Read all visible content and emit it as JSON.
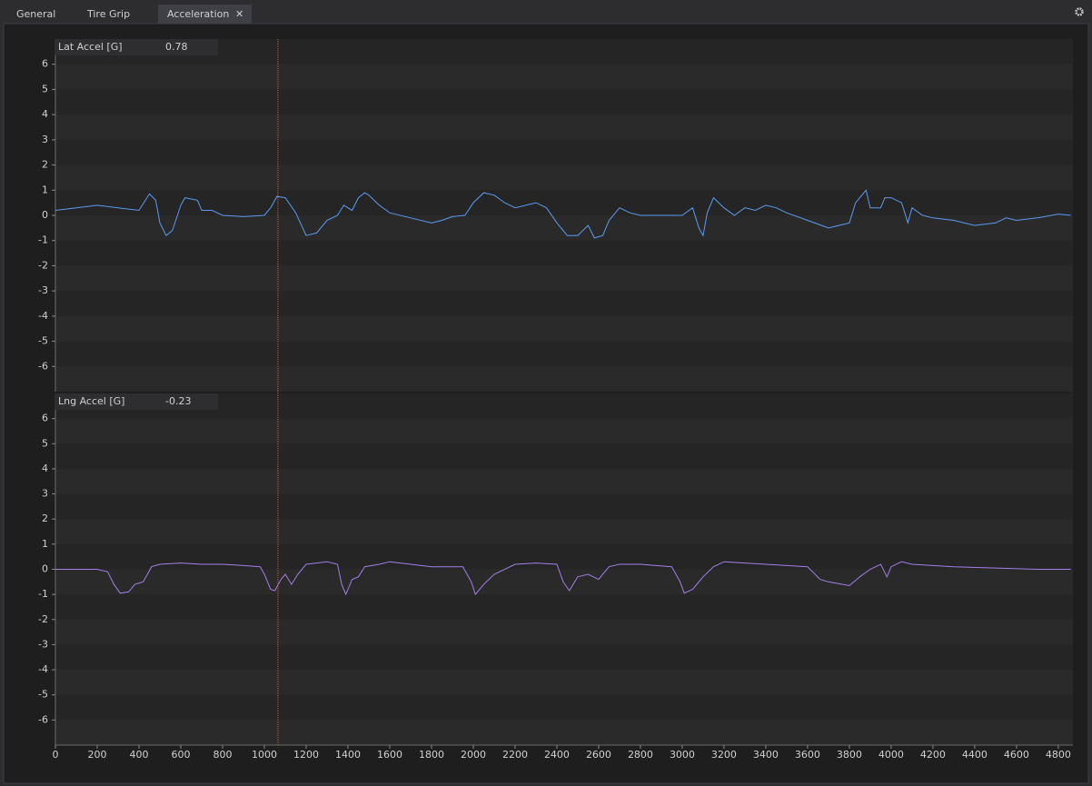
{
  "tabs": [
    "General",
    "Tire Grip",
    "Acceleration"
  ],
  "active_tab": 2,
  "cursor_x": 1065,
  "chart_data": [
    {
      "type": "line",
      "title": "Lat Accel [G]",
      "readout": 0.78,
      "color": "#5b9bf0",
      "xlim": [
        0,
        4870
      ],
      "ylim": [
        -7,
        7
      ],
      "yticks": [
        6,
        5,
        4,
        3,
        2,
        1,
        0,
        -1,
        -2,
        -3,
        -4,
        -5,
        -6
      ],
      "x": [
        0,
        100,
        200,
        300,
        400,
        450,
        480,
        500,
        530,
        560,
        600,
        620,
        680,
        700,
        750,
        800,
        900,
        1000,
        1030,
        1060,
        1100,
        1150,
        1200,
        1250,
        1300,
        1350,
        1380,
        1420,
        1450,
        1480,
        1500,
        1550,
        1600,
        1700,
        1800,
        1850,
        1900,
        1960,
        2000,
        2050,
        2100,
        2150,
        2200,
        2300,
        2350,
        2400,
        2450,
        2500,
        2550,
        2580,
        2620,
        2650,
        2700,
        2750,
        2800,
        2900,
        3000,
        3050,
        3080,
        3100,
        3120,
        3150,
        3200,
        3250,
        3300,
        3350,
        3400,
        3450,
        3500,
        3600,
        3700,
        3750,
        3800,
        3830,
        3850,
        3880,
        3900,
        3950,
        3970,
        4000,
        4050,
        4080,
        4100,
        4150,
        4200,
        4300,
        4400,
        4500,
        4550,
        4600,
        4700,
        4800,
        4860
      ],
      "values": [
        0.2,
        0.3,
        0.4,
        0.3,
        0.2,
        0.85,
        0.6,
        -0.3,
        -0.8,
        -0.6,
        0.4,
        0.7,
        0.6,
        0.2,
        0.2,
        0,
        -0.05,
        0,
        0.3,
        0.75,
        0.7,
        0.1,
        -0.8,
        -0.7,
        -0.2,
        0,
        0.4,
        0.2,
        0.7,
        0.9,
        0.8,
        0.4,
        0.1,
        -0.1,
        -0.3,
        -0.2,
        -0.05,
        0,
        0.5,
        0.9,
        0.8,
        0.5,
        0.3,
        0.5,
        0.3,
        -0.3,
        -0.8,
        -0.8,
        -0.4,
        -0.9,
        -0.8,
        -0.2,
        0.3,
        0.1,
        0,
        0,
        0,
        0.3,
        -0.5,
        -0.8,
        0.1,
        0.7,
        0.3,
        0,
        0.3,
        0.2,
        0.4,
        0.3,
        0.1,
        -0.2,
        -0.5,
        -0.4,
        -0.3,
        0.5,
        0.7,
        1.0,
        0.3,
        0.3,
        0.7,
        0.7,
        0.5,
        -0.3,
        0.3,
        0,
        -0.1,
        -0.2,
        -0.4,
        -0.3,
        -0.1,
        -0.2,
        -0.1,
        0.05,
        0
      ]
    },
    {
      "type": "line",
      "title": "Lng Accel [G]",
      "readout": -0.23,
      "color": "#a57ee8",
      "xlim": [
        0,
        4870
      ],
      "ylim": [
        -7,
        7
      ],
      "yticks": [
        6,
        5,
        4,
        3,
        2,
        1,
        0,
        -1,
        -2,
        -3,
        -4,
        -5,
        -6
      ],
      "xticks": [
        0,
        200,
        400,
        600,
        800,
        1000,
        1200,
        1400,
        1600,
        1800,
        2000,
        2200,
        2400,
        2600,
        2800,
        3000,
        3200,
        3400,
        3600,
        3800,
        4000,
        4200,
        4400,
        4600,
        4800
      ],
      "x": [
        0,
        200,
        250,
        280,
        310,
        350,
        380,
        420,
        460,
        500,
        600,
        700,
        800,
        900,
        980,
        1000,
        1030,
        1050,
        1080,
        1100,
        1130,
        1160,
        1200,
        1300,
        1350,
        1370,
        1390,
        1420,
        1450,
        1480,
        1550,
        1600,
        1700,
        1800,
        1950,
        1990,
        2010,
        2050,
        2100,
        2200,
        2300,
        2400,
        2430,
        2460,
        2500,
        2550,
        2600,
        2650,
        2700,
        2800,
        2950,
        2990,
        3010,
        3050,
        3100,
        3150,
        3200,
        3300,
        3400,
        3600,
        3660,
        3700,
        3800,
        3850,
        3900,
        3950,
        3980,
        4000,
        4050,
        4100,
        4300,
        4500,
        4700,
        4860
      ],
      "values": [
        0,
        0,
        -0.1,
        -0.6,
        -0.95,
        -0.9,
        -0.6,
        -0.5,
        0.1,
        0.2,
        0.25,
        0.2,
        0.2,
        0.15,
        0.1,
        -0.2,
        -0.8,
        -0.85,
        -0.4,
        -0.2,
        -0.6,
        -0.2,
        0.2,
        0.3,
        0.2,
        -0.6,
        -1.0,
        -0.4,
        -0.3,
        0.1,
        0.2,
        0.3,
        0.2,
        0.1,
        0.1,
        -0.5,
        -1.0,
        -0.6,
        -0.2,
        0.2,
        0.25,
        0.2,
        -0.5,
        -0.85,
        -0.3,
        -0.2,
        -0.4,
        0.1,
        0.2,
        0.2,
        0.1,
        -0.5,
        -0.95,
        -0.8,
        -0.3,
        0.1,
        0.3,
        0.25,
        0.2,
        0.1,
        -0.4,
        -0.5,
        -0.65,
        -0.3,
        0,
        0.2,
        -0.3,
        0.1,
        0.3,
        0.2,
        0.1,
        0.05,
        0,
        0
      ]
    }
  ]
}
